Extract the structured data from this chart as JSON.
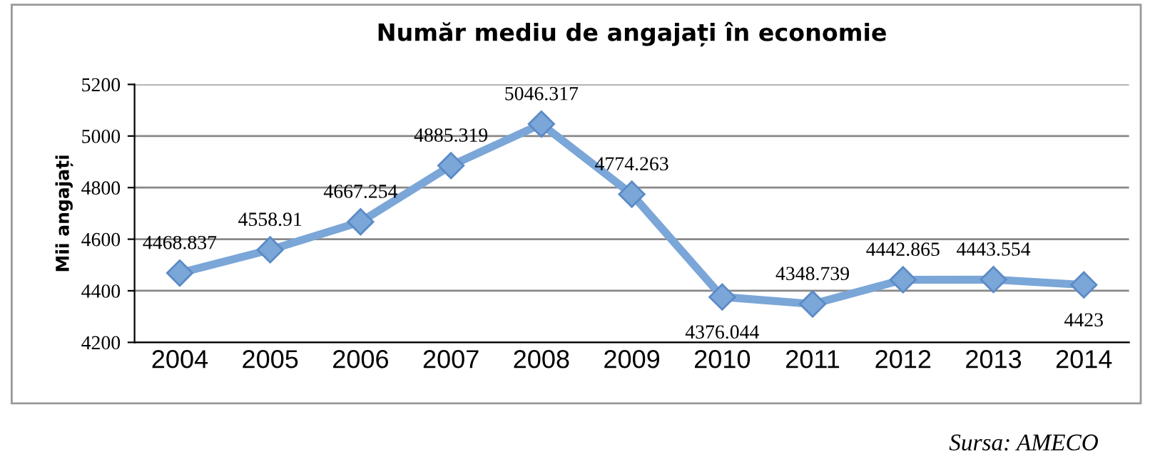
{
  "chart_data": {
    "type": "line",
    "title": "Număr mediu de angajați în economie",
    "ylabel": "Mii angajați",
    "categories": [
      "2004",
      "2005",
      "2006",
      "2007",
      "2008",
      "2009",
      "2010",
      "2011",
      "2012",
      "2013",
      "2014"
    ],
    "series": [
      {
        "color": "#7aa6d8",
        "values": [
          4468.837,
          4558.91,
          4667.254,
          4885.319,
          5046.317,
          4774.263,
          4376.044,
          4348.739,
          4442.865,
          4443.554,
          4423
        ]
      }
    ],
    "ylim": [
      4200,
      5200
    ],
    "yticks": [
      4200,
      4400,
      4600,
      4800,
      5000,
      5200
    ],
    "grid": "y",
    "marker": "diamond",
    "line_style": "solid",
    "data_labels": true,
    "annotations": [
      "Sursa: AMECO"
    ]
  }
}
